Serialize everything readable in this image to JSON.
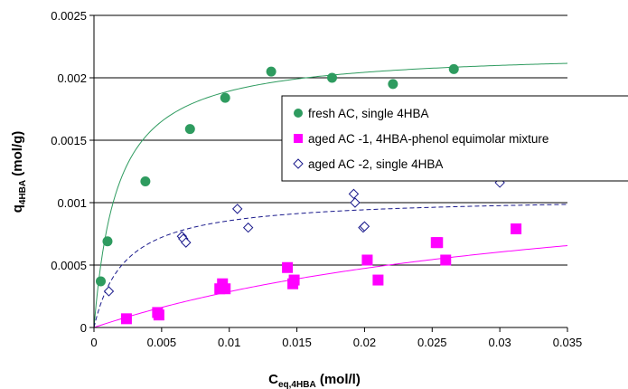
{
  "chart_data": {
    "type": "scatter",
    "title": "",
    "xlabel": {
      "main": "C",
      "sub": "eq,4HBA",
      "tail": " (mol/l)"
    },
    "ylabel": {
      "main": "q",
      "sub": "4HBA",
      "tail": " (mol/g)"
    },
    "xlim": [
      0,
      0.035
    ],
    "ylim": [
      0,
      0.0025
    ],
    "xticks": [
      "0",
      "0.005",
      "0.01",
      "0.015",
      "0.02",
      "0.025",
      "0.03",
      "0.035"
    ],
    "xtick_values": [
      0,
      0.005,
      0.01,
      0.015,
      0.02,
      0.025,
      0.03,
      0.035
    ],
    "yticks": [
      "0",
      "0.0005",
      "0.001",
      "0.0015",
      "0.002",
      "0.0025"
    ],
    "ytick_values": [
      0,
      0.0005,
      0.001,
      0.0015,
      0.002,
      0.0025
    ],
    "grid": "horizontal",
    "legend_position": "center-right",
    "series": [
      {
        "name": "fresh AC, single 4HBA",
        "marker": "circle",
        "color": "#2e9b5f",
        "x": [
          0.0005,
          0.001,
          0.0038,
          0.0071,
          0.0097,
          0.0131,
          0.0176,
          0.0221,
          0.0266
        ],
        "y": [
          0.00037,
          0.00069,
          0.00117,
          0.00159,
          0.00184,
          0.00205,
          0.002,
          0.00195,
          0.00207
        ],
        "fit": {
          "type": "langmuir",
          "qmax": 0.00222,
          "K": 580,
          "style": "solid",
          "color": "#2e9b5f"
        }
      },
      {
        "name": "aged AC -1, 4HBA-phenol equimolar mixture",
        "marker": "square",
        "color": "#ff00ff",
        "x": [
          0.0024,
          0.0047,
          0.0048,
          0.0093,
          0.0095,
          0.0097,
          0.0143,
          0.0147,
          0.0148,
          0.0202,
          0.021,
          0.0253,
          0.0254,
          0.026,
          0.0312
        ],
        "y": [
          7e-05,
          0.00012,
          0.0001,
          0.00031,
          0.00035,
          0.00031,
          0.00048,
          0.00035,
          0.00038,
          0.00054,
          0.00038,
          0.00068,
          0.00068,
          0.00054,
          0.00079
        ],
        "fit": {
          "type": "langmuir",
          "qmax": 0.00135,
          "K": 27,
          "style": "solid",
          "color": "#ff00ff"
        }
      },
      {
        "name": "aged AC -2, single 4HBA",
        "marker": "diamond-open",
        "color": "#1a1a8c",
        "x": [
          0.0011,
          0.0065,
          0.0066,
          0.0068,
          0.0106,
          0.0114,
          0.0192,
          0.0193,
          0.0199,
          0.02,
          0.03
        ],
        "y": [
          0.00029,
          0.00073,
          0.00071,
          0.00068,
          0.00095,
          0.0008,
          0.00107,
          0.001,
          0.0008,
          0.00081,
          0.00116
        ],
        "fit": {
          "type": "langmuir",
          "qmax": 0.00105,
          "K": 440,
          "style": "dashed",
          "color": "#1a1a8c"
        }
      }
    ]
  }
}
